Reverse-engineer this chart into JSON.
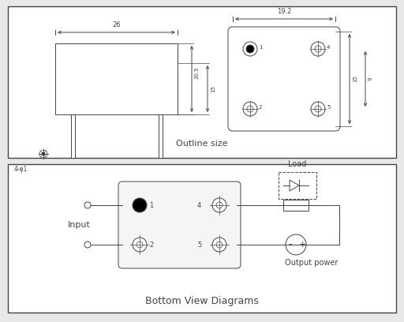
{
  "bg_color": "#e8e8e8",
  "panel_bg": "#ffffff",
  "line_color": "#444444",
  "title1": "Outline size",
  "title2": "Bottom View Diagrams",
  "dim_26": "26",
  "dim_19_2": "19.2",
  "dim_20_5": "20.5",
  "dim_15": "15",
  "dim_9": "9",
  "dim_phi1": "4-φ1",
  "label_input": "Input",
  "label_load": "Load",
  "label_output": "Output power"
}
